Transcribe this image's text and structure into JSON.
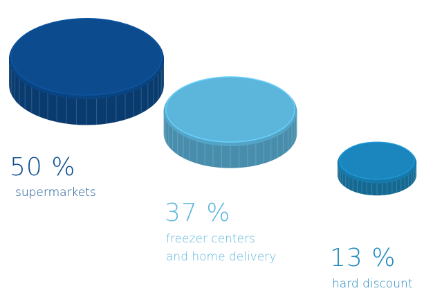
{
  "chart_data": {
    "type": "pictogram",
    "categories": [
      "supermarkets",
      "freezer centers\nand home delivery",
      "hard discount"
    ],
    "values": [
      50,
      37,
      13
    ],
    "value_labels": [
      "50 %",
      "37 %",
      "13 %"
    ],
    "colors": [
      "#0b4b8e",
      "#5cb6dc",
      "#1a86bd"
    ]
  }
}
